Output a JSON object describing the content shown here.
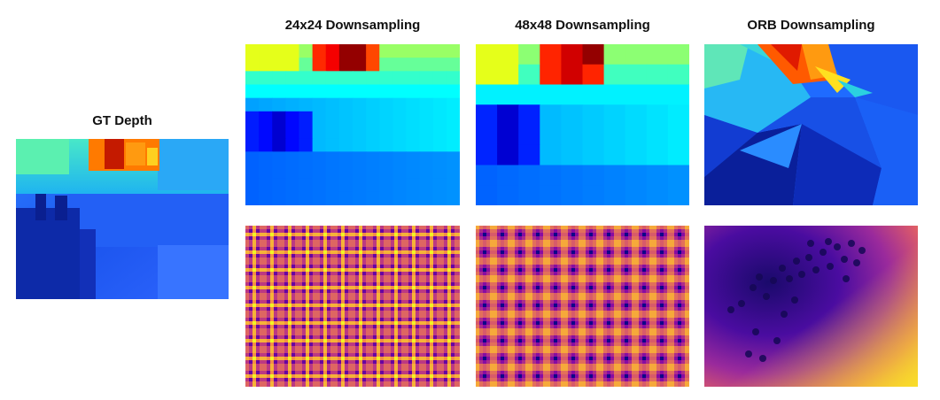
{
  "figure": {
    "titles": {
      "gt": "GT Depth",
      "d24": "24x24 Downsampling",
      "d48": "48x48 Downsampling",
      "orb": "ORB Downsampling"
    },
    "colormaps": {
      "depth": "jet",
      "distance": "plasma"
    },
    "colors": {
      "depth_far_warm": "#ff6a00",
      "depth_near_blue": "#1a3fd9",
      "distance_dark": "#1a0a6b",
      "distance_bright": "#f9e02a"
    }
  }
}
